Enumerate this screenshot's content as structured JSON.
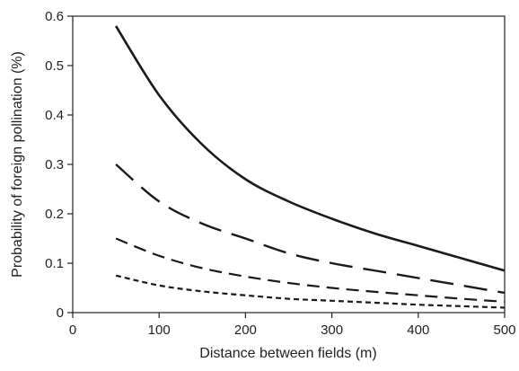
{
  "chart_data": {
    "type": "line",
    "title": "",
    "xlabel": "Distance between fields (m)",
    "ylabel": "Probability of foreign pollination (%)",
    "xlim": [
      0,
      500
    ],
    "ylim": [
      0,
      0.6
    ],
    "xticks": [
      0,
      100,
      200,
      300,
      400,
      500
    ],
    "yticks": [
      0,
      0.1,
      0.2,
      0.3,
      0.4,
      0.5,
      0.6
    ],
    "ytick_labels": [
      "0",
      "0.1",
      "0.2",
      "0.3",
      "0.4",
      "0.5",
      "0.6"
    ],
    "grid": false,
    "legend": "none",
    "line_color": "#1a1a1a",
    "x": [
      50,
      100,
      150,
      200,
      250,
      300,
      350,
      400,
      450,
      500
    ],
    "series": [
      {
        "style": "solid",
        "values": [
          0.58,
          0.44,
          0.34,
          0.27,
          0.225,
          0.19,
          0.16,
          0.135,
          0.11,
          0.085
        ]
      },
      {
        "style": "long-dash",
        "values": [
          0.3,
          0.225,
          0.18,
          0.15,
          0.12,
          0.1,
          0.085,
          0.07,
          0.055,
          0.04
        ]
      },
      {
        "style": "medium-dash",
        "values": [
          0.15,
          0.115,
          0.09,
          0.073,
          0.06,
          0.05,
          0.042,
          0.035,
          0.028,
          0.022
        ]
      },
      {
        "style": "short-dash",
        "values": [
          0.075,
          0.055,
          0.043,
          0.035,
          0.028,
          0.024,
          0.02,
          0.016,
          0.013,
          0.01
        ]
      }
    ]
  }
}
